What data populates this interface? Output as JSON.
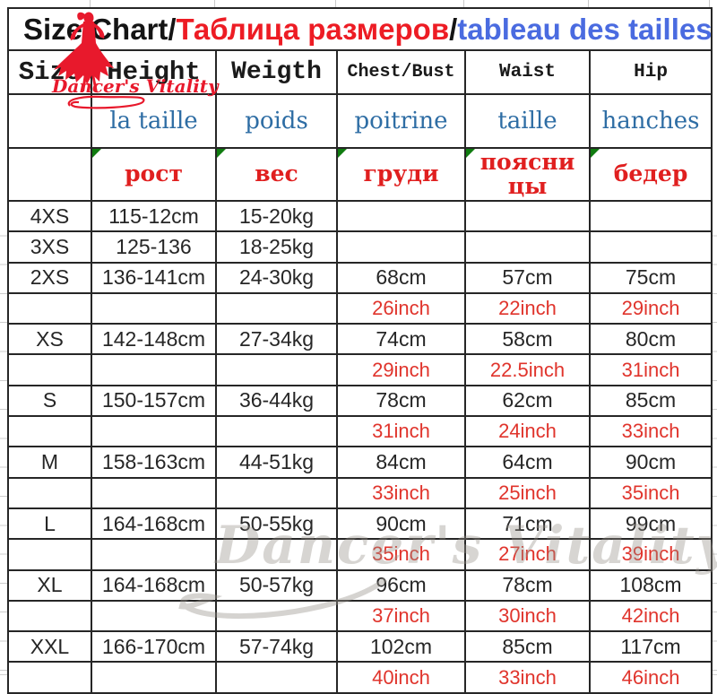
{
  "title": {
    "en": "Size Chart/",
    "ru": "Таблица размеров",
    "sep": "/",
    "fr": "tableau des tailles"
  },
  "brand": {
    "logo_text": "Dancer's Vitality",
    "watermark_text": "Dancer's Vitality"
  },
  "table": {
    "col_keys": [
      "size",
      "height",
      "weight",
      "chest",
      "waist",
      "hip"
    ],
    "headers_en": [
      "Size",
      "Height",
      "Weigth",
      "Chest/Bust",
      "Waist",
      "Hip"
    ],
    "headers_fr": [
      "",
      "la taille",
      "poids",
      "poitrine",
      "taille",
      "hanches"
    ],
    "headers_ru": [
      "",
      "рост",
      "вес",
      "груди",
      "поясницы",
      "бедер"
    ],
    "rows": [
      {
        "unit": "cm",
        "cells": [
          "4XS",
          "115-12cm",
          "15-20kg",
          "",
          "",
          ""
        ]
      },
      {
        "unit": "cm",
        "cells": [
          "3XS",
          "125-136",
          "18-25kg",
          "",
          "",
          ""
        ]
      },
      {
        "unit": "cm",
        "cells": [
          "2XS",
          "136-141cm",
          "24-30kg",
          "68cm",
          "57cm",
          "75cm"
        ]
      },
      {
        "unit": "inch",
        "cells": [
          "",
          "",
          "",
          "26inch",
          "22inch",
          "29inch"
        ]
      },
      {
        "unit": "cm",
        "cells": [
          "XS",
          "142-148cm",
          "27-34kg",
          "74cm",
          "58cm",
          "80cm"
        ]
      },
      {
        "unit": "inch",
        "cells": [
          "",
          "",
          "",
          "29inch",
          "22.5inch",
          "31inch"
        ]
      },
      {
        "unit": "cm",
        "cells": [
          "S",
          "150-157cm",
          "36-44kg",
          "78cm",
          "62cm",
          "85cm"
        ]
      },
      {
        "unit": "inch",
        "cells": [
          "",
          "",
          "",
          "31inch",
          "24inch",
          "33inch"
        ]
      },
      {
        "unit": "cm",
        "cells": [
          "M",
          "158-163cm",
          "44-51kg",
          "84cm",
          "64cm",
          "90cm"
        ]
      },
      {
        "unit": "inch",
        "cells": [
          "",
          "",
          "",
          "33inch",
          "25inch",
          "35inch"
        ]
      },
      {
        "unit": "cm",
        "cells": [
          "L",
          "164-168cm",
          "50-55kg",
          "90cm",
          "71cm",
          "99cm"
        ]
      },
      {
        "unit": "inch",
        "cells": [
          "",
          "",
          "",
          "35inch",
          "27inch",
          "39inch"
        ]
      },
      {
        "unit": "cm",
        "cells": [
          "XL",
          "164-168cm",
          "50-57kg",
          "96cm",
          "78cm",
          "108cm"
        ]
      },
      {
        "unit": "inch",
        "cells": [
          "",
          "",
          "",
          "37inch",
          "30inch",
          "42inch"
        ]
      },
      {
        "unit": "cm",
        "cells": [
          "XXL",
          "166-170cm",
          "57-74kg",
          "102cm",
          "85cm",
          "117cm"
        ]
      },
      {
        "unit": "inch",
        "cells": [
          "",
          "",
          "",
          "40inch",
          "33inch",
          "46inch"
        ]
      }
    ]
  },
  "colors": {
    "title_red": "#ed1c24",
    "title_blue": "#4a6be0",
    "french_blue": "#2e6da4",
    "russian_red": "#e01f1f",
    "inch_red": "#e0342c",
    "brand_red": "#e8192c",
    "border_dark": "#262626",
    "flag_green": "#107C10"
  }
}
